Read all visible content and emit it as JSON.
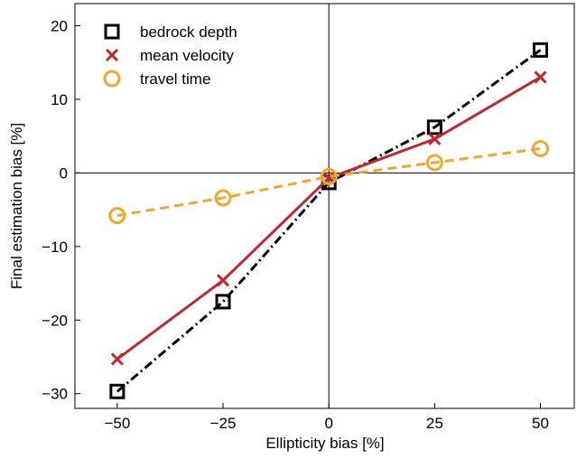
{
  "chart_data": {
    "type": "line",
    "x_label": "Ellipticity bias [%]",
    "y_label": "Final estimation bias [%]",
    "x": [
      -50,
      -25,
      0,
      25,
      50
    ],
    "series": [
      {
        "name": "bedrock depth",
        "color": "#000000",
        "marker": "square",
        "linestyle": "dashdot",
        "values": [
          -29.7,
          -17.5,
          -1.3,
          6.2,
          16.7
        ]
      },
      {
        "name": "mean velocity",
        "color": "#c1272d",
        "marker": "x",
        "linestyle": "solid",
        "values": [
          -25.3,
          -14.6,
          -0.7,
          4.6,
          13.0
        ]
      },
      {
        "name": "travel time",
        "color": "#f2a62c",
        "marker": "circle",
        "linestyle": "dashed",
        "values": [
          -5.8,
          -3.4,
          -0.5,
          1.4,
          3.3
        ]
      }
    ],
    "xlim": [
      -60,
      58
    ],
    "ylim": [
      -32,
      23
    ],
    "xticks": [
      {
        "value": -50,
        "label": "−50"
      },
      {
        "value": -25,
        "label": "−25"
      },
      0,
      25,
      50
    ],
    "yticks": [
      {
        "value": -30,
        "label": "−30"
      },
      {
        "value": -20,
        "label": "−20"
      },
      {
        "value": -10,
        "label": "−10"
      },
      0,
      10,
      20
    ],
    "zero_lines": true,
    "legend": "upper left"
  }
}
